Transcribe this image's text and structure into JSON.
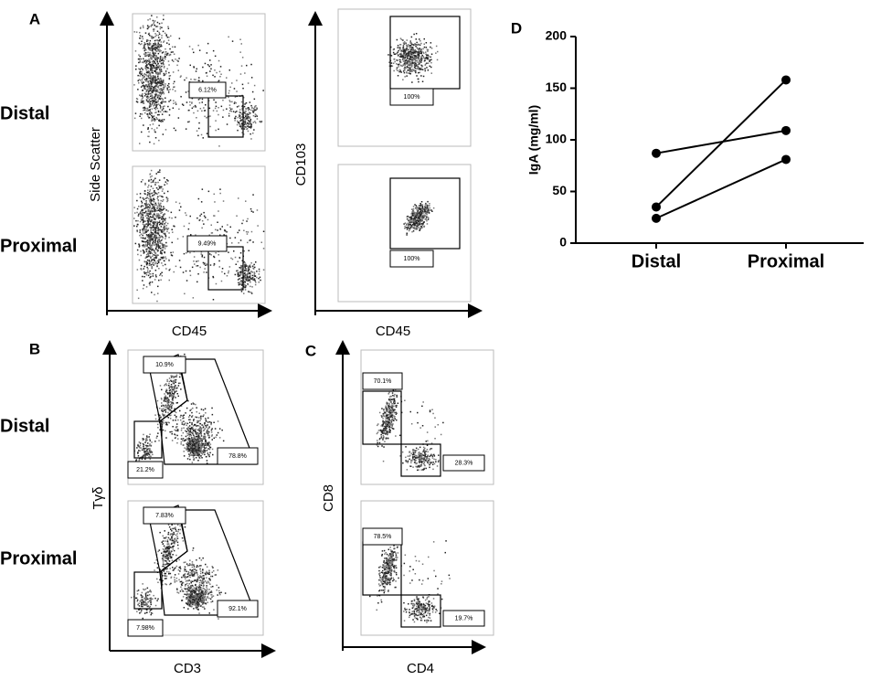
{
  "panel_a": {
    "label": "A",
    "rows": [
      "Distal",
      "Proximal"
    ],
    "left": {
      "y_label": "Side Scatter",
      "x_label": "CD45",
      "gates": [
        "6.12%",
        "9.49%"
      ]
    },
    "right": {
      "y_label": "CD103",
      "x_label": "CD45",
      "gates": [
        "100%",
        "100%"
      ]
    }
  },
  "panel_b": {
    "label": "B",
    "rows": [
      "Distal",
      "Proximal"
    ],
    "y_label": "Tγδ",
    "x_label": "CD3",
    "gates": [
      [
        "10.9%",
        "21.2%",
        "78.8%"
      ],
      [
        "7.83%",
        "7.98%",
        "92.1%"
      ]
    ]
  },
  "panel_c": {
    "label": "C",
    "y_label": "CD8",
    "x_label": "CD4",
    "gates": [
      [
        "70.1%",
        "28.3%"
      ],
      [
        "78.5%",
        "19.7%"
      ]
    ]
  },
  "chart_data": {
    "type": "line",
    "panel_label": "D",
    "y_label": "IgA (mg/ml)",
    "categories": [
      "Distal",
      "Proximal"
    ],
    "series": [
      {
        "color": "#000000",
        "values": [
          87,
          109
        ]
      },
      {
        "color": "#000000",
        "values": [
          35,
          158
        ]
      },
      {
        "color": "#000000",
        "values": [
          24,
          81
        ]
      }
    ],
    "ylim": [
      0,
      200
    ],
    "yticks": [
      0,
      50,
      100,
      150,
      200
    ]
  }
}
